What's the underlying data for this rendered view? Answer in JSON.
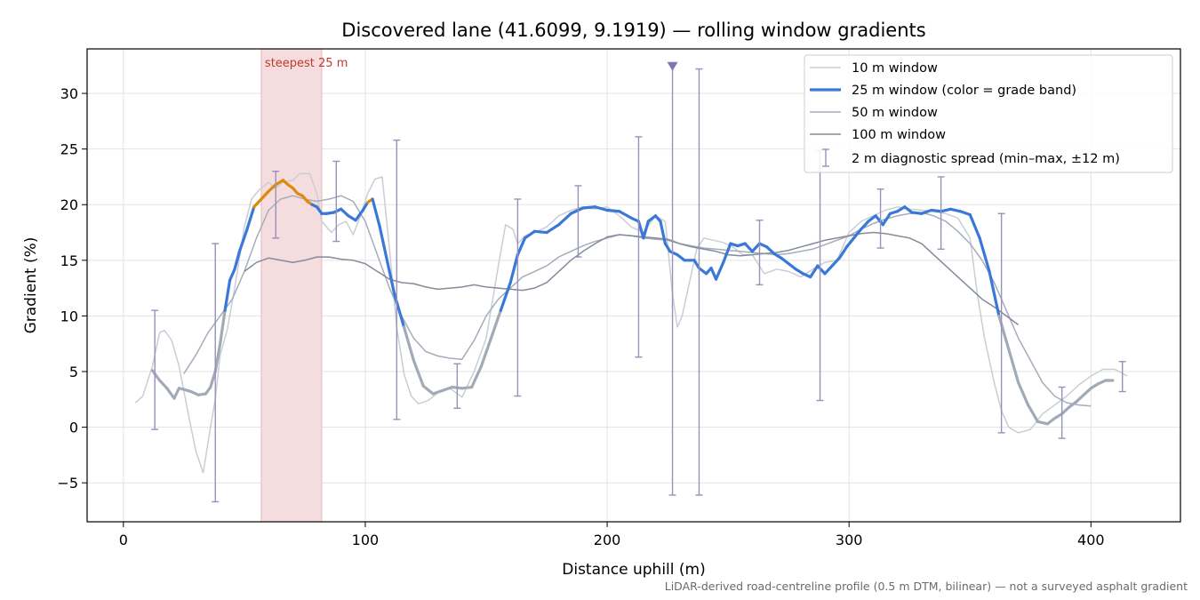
{
  "chart_data": {
    "type": "line",
    "title": "Discovered lane (41.6099, 9.1919) — rolling window gradients",
    "xlabel": "Distance uphill (m)",
    "ylabel": "Gradient (%)",
    "xlim": [
      -15,
      437
    ],
    "ylim": [
      -8.5,
      34
    ],
    "xticks": [
      0,
      100,
      200,
      300,
      400
    ],
    "yticks": [
      -5,
      0,
      5,
      10,
      15,
      20,
      25,
      30
    ],
    "grid": true,
    "legend_position": "top-right",
    "footnote": "LiDAR-derived road-centreline profile (0.5 m DTM, bilinear) — not a surveyed asphalt gradient",
    "highlight_band": {
      "x0": 57,
      "x1": 82,
      "label": "steepest 25 m",
      "color": "#f5dcdf"
    },
    "colors": {
      "w10": "#c9ced6",
      "w25": "#3a78d8",
      "w25_low": "#a2aab8",
      "w25_high": "#e08a0a",
      "w50": "#a3adbb",
      "w100": "#848b99",
      "diag": "#9891b8"
    },
    "legend": [
      {
        "key": "w10",
        "label": "10 m window"
      },
      {
        "key": "w25",
        "label": "25 m window (color = grade band)"
      },
      {
        "key": "w50",
        "label": "50 m window"
      },
      {
        "key": "w100",
        "label": "100 m window"
      },
      {
        "key": "diag",
        "label": "2 m diagnostic spread (min–max, ±12 m)"
      }
    ],
    "series": [
      {
        "name": "10 m window",
        "x": [
          5,
          8,
          12,
          15,
          17,
          20,
          23,
          27,
          30,
          33,
          36,
          38,
          40,
          43,
          46,
          50,
          53,
          56,
          60,
          63,
          66,
          70,
          73,
          77,
          80,
          82,
          86,
          89,
          92,
          95,
          98,
          101,
          104,
          107,
          110,
          113,
          116,
          119,
          122,
          126,
          130,
          135,
          140,
          145,
          150,
          155,
          158,
          161,
          163,
          166,
          170,
          175,
          180,
          185,
          190,
          195,
          200,
          205,
          210,
          215,
          220,
          224,
          227,
          229,
          231,
          234,
          237,
          240,
          244,
          248,
          252,
          256,
          260,
          265,
          270,
          275,
          280,
          285,
          290,
          295,
          300,
          305,
          310,
          315,
          320,
          325,
          330,
          335,
          340,
          345,
          350,
          353,
          356,
          360,
          363,
          366,
          370,
          375,
          380,
          385,
          390,
          395,
          400,
          405,
          410,
          415
        ],
        "y": [
          2.2,
          2.8,
          5.5,
          8.5,
          8.7,
          7.8,
          5.5,
          1,
          -2.2,
          -4.1,
          0,
          2.5,
          6.5,
          8.8,
          12.5,
          18,
          20.5,
          21.3,
          22,
          21.5,
          22,
          22.2,
          22.8,
          22.8,
          21,
          18.5,
          17.5,
          18.2,
          18.5,
          17.3,
          19,
          21,
          22.3,
          22.5,
          16,
          9,
          4.8,
          2.8,
          2.1,
          2.4,
          3.1,
          3.5,
          2.7,
          5,
          8,
          14.5,
          18.2,
          17.8,
          16.5,
          17.2,
          17.5,
          18,
          19,
          19.5,
          19.8,
          19.6,
          19.8,
          19,
          18,
          17.5,
          19,
          18.5,
          12,
          9,
          10,
          13,
          16,
          17,
          16.8,
          16.6,
          16.2,
          15.5,
          15.5,
          13.8,
          14.2,
          14,
          13.5,
          14.2,
          14.8,
          15,
          17.5,
          18.5,
          19,
          19.5,
          19.8,
          19.6,
          19.5,
          19.4,
          19.2,
          18.8,
          17,
          12,
          8,
          4,
          1.5,
          0,
          -0.5,
          -0.2,
          1.2,
          2,
          2.8,
          3.8,
          4.6,
          5.2,
          5.2,
          4.6
        ]
      },
      {
        "name": "25 m window (color = grade band)",
        "x": [
          12,
          15,
          18,
          21,
          23,
          25,
          28,
          31,
          34,
          36,
          38,
          40,
          42,
          44,
          46,
          48,
          51,
          54,
          57,
          60,
          63,
          66,
          68,
          70,
          72,
          74,
          76,
          78,
          80,
          82,
          84,
          87,
          90,
          93,
          96,
          99,
          101,
          103,
          106,
          109,
          112,
          116,
          120,
          124,
          128,
          132,
          136,
          140,
          144,
          148,
          152,
          156,
          160,
          163,
          166,
          170,
          175,
          180,
          185,
          190,
          195,
          200,
          205,
          210,
          213,
          215,
          217,
          220,
          222,
          224,
          226,
          229,
          232,
          236,
          238,
          241,
          243,
          245,
          248,
          251,
          254,
          257,
          260,
          263,
          266,
          269,
          272,
          275,
          278,
          281,
          284,
          287,
          290,
          293,
          296,
          299,
          302,
          305,
          308,
          311,
          314,
          317,
          320,
          323,
          326,
          330,
          334,
          338,
          342,
          346,
          350,
          354,
          358,
          362,
          366,
          370,
          374,
          378,
          382,
          385,
          388,
          391,
          394,
          397,
          400,
          403,
          406,
          409
        ],
        "y": [
          5.1,
          4.2,
          3.5,
          2.6,
          3.5,
          3.4,
          3.2,
          2.9,
          3,
          3.6,
          5,
          7.5,
          10.5,
          13.2,
          14.2,
          15.8,
          17.7,
          19.8,
          20.5,
          21.2,
          21.8,
          22.2,
          21.8,
          21.5,
          21,
          20.8,
          20.3,
          20,
          19.8,
          19.2,
          19.2,
          19.3,
          19.6,
          19.0,
          18.6,
          19.5,
          20.2,
          20.5,
          18,
          15,
          12,
          9,
          6,
          3.7,
          3,
          3.3,
          3.6,
          3.5,
          3.6,
          5.5,
          8,
          10.5,
          13,
          15.5,
          17,
          17.6,
          17.5,
          18.2,
          19.2,
          19.7,
          19.8,
          19.5,
          19.4,
          18.8,
          18.5,
          17,
          18.5,
          19,
          18.5,
          16.5,
          15.8,
          15.5,
          15,
          15,
          14.3,
          13.8,
          14.3,
          13.3,
          14.8,
          16.5,
          16.3,
          16.5,
          15.8,
          16.5,
          16.2,
          15.6,
          15.2,
          14.7,
          14.2,
          13.8,
          13.5,
          14.5,
          13.8,
          14.5,
          15.2,
          16.2,
          17,
          17.8,
          18.5,
          19.0,
          18.2,
          19.2,
          19.4,
          19.8,
          19.3,
          19.2,
          19.5,
          19.4,
          19.6,
          19.4,
          19.1,
          17,
          14,
          10,
          7,
          4,
          2,
          0.5,
          0.3,
          0.8,
          1.2,
          1.8,
          2.3,
          2.9,
          3.5,
          3.9,
          4.2,
          4.2
        ]
      },
      {
        "name": "50 m window",
        "x": [
          25,
          30,
          35,
          40,
          45,
          50,
          55,
          60,
          65,
          70,
          75,
          80,
          85,
          90,
          95,
          100,
          105,
          110,
          115,
          120,
          125,
          130,
          135,
          140,
          145,
          150,
          155,
          160,
          165,
          170,
          175,
          180,
          185,
          190,
          195,
          200,
          205,
          210,
          215,
          220,
          225,
          230,
          235,
          240,
          245,
          250,
          255,
          260,
          265,
          270,
          275,
          280,
          285,
          290,
          295,
          300,
          305,
          310,
          315,
          320,
          325,
          330,
          335,
          340,
          345,
          350,
          355,
          360,
          365,
          370,
          375,
          380,
          385,
          390,
          395,
          400
        ],
        "y": [
          4.8,
          6.5,
          8.5,
          10,
          11.5,
          14,
          17,
          19.5,
          20.5,
          20.8,
          20.5,
          20.3,
          20.5,
          20.8,
          20.3,
          18.5,
          15.5,
          12.5,
          10,
          8,
          6.8,
          6.4,
          6.2,
          6.1,
          7.8,
          10,
          11.5,
          12.5,
          13.5,
          14,
          14.5,
          15.3,
          15.8,
          16.3,
          16.7,
          17,
          17.3,
          17.2,
          17,
          16.9,
          16.8,
          16.5,
          16.3,
          16.1,
          16,
          15.9,
          15.8,
          15.7,
          15.6,
          15.5,
          15.6,
          15.8,
          16,
          16.4,
          16.8,
          17.2,
          17.8,
          18.3,
          18.7,
          19,
          19.2,
          19.3,
          19,
          18.5,
          17.6,
          16.5,
          15,
          13,
          10.5,
          8,
          6,
          4,
          2.8,
          2.2,
          2,
          1.9
        ]
      },
      {
        "name": "100 m window",
        "x": [
          50,
          55,
          60,
          65,
          70,
          75,
          80,
          85,
          90,
          95,
          100,
          105,
          110,
          115,
          120,
          125,
          130,
          135,
          140,
          145,
          150,
          155,
          160,
          165,
          170,
          175,
          180,
          185,
          190,
          195,
          200,
          205,
          210,
          215,
          220,
          225,
          230,
          235,
          240,
          245,
          250,
          255,
          260,
          265,
          270,
          275,
          280,
          285,
          290,
          295,
          300,
          305,
          310,
          315,
          320,
          325,
          330,
          335,
          340,
          345,
          350,
          355,
          360,
          365,
          370
        ],
        "y": [
          14,
          14.8,
          15.2,
          15,
          14.8,
          15,
          15.3,
          15.3,
          15.1,
          15,
          14.7,
          14,
          13.3,
          13,
          12.9,
          12.6,
          12.4,
          12.5,
          12.6,
          12.8,
          12.6,
          12.5,
          12.4,
          12.3,
          12.5,
          13,
          14,
          15,
          15.8,
          16.5,
          17.1,
          17.3,
          17.2,
          17.1,
          17,
          16.9,
          16.5,
          16.2,
          16,
          15.8,
          15.5,
          15.4,
          15.5,
          15.6,
          15.7,
          15.9,
          16.2,
          16.5,
          16.8,
          17,
          17.2,
          17.4,
          17.5,
          17.4,
          17.2,
          17,
          16.5,
          15.5,
          14.5,
          13.5,
          12.5,
          11.5,
          10.8,
          10,
          9.2
        ]
      }
    ],
    "diagnostic_spread": [
      {
        "x": 13,
        "min": -0.2,
        "max": 10.5
      },
      {
        "x": 38,
        "min": -6.7,
        "max": 16.5
      },
      {
        "x": 63,
        "min": 17,
        "max": 23
      },
      {
        "x": 88,
        "min": 16.7,
        "max": 23.9
      },
      {
        "x": 113,
        "min": 0.7,
        "max": 25.8
      },
      {
        "x": 138,
        "min": 1.7,
        "max": 5.7
      },
      {
        "x": 163,
        "min": 2.8,
        "max": 20.5
      },
      {
        "x": 188,
        "min": 15.3,
        "max": 21.7
      },
      {
        "x": 213,
        "min": 6.3,
        "max": 26.1
      },
      {
        "x": 227,
        "min": -6.1,
        "max": 32.5,
        "marker": "clipped"
      },
      {
        "x": 238,
        "min": -6.1,
        "max": 32.2
      },
      {
        "x": 263,
        "min": 12.8,
        "max": 18.6
      },
      {
        "x": 288,
        "min": 2.4,
        "max": 24.9
      },
      {
        "x": 313,
        "min": 16.1,
        "max": 21.4
      },
      {
        "x": 338,
        "min": 16,
        "max": 22.5
      },
      {
        "x": 363,
        "min": -0.5,
        "max": 19.2
      },
      {
        "x": 388,
        "min": -1,
        "max": 3.6
      },
      {
        "x": 413,
        "min": 3.2,
        "max": 5.9
      }
    ]
  }
}
